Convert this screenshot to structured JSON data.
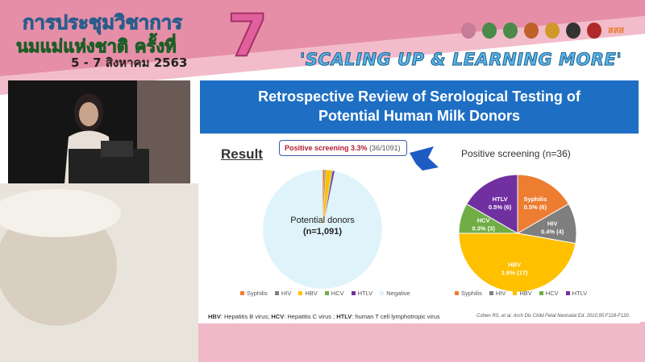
{
  "conference": {
    "title_line1": "การประชุมวิชาการ",
    "title_line2": "นมแม่แห่งชาติ ครั้งที่",
    "number": "7",
    "dates": "5 - 7 สิงหาคม 2563",
    "slogan": "'SCALING UP & LEARNING MORE'",
    "logo_text": "สสส"
  },
  "slide": {
    "title_line1": "Retrospective Review of Serological Testing of",
    "title_line2": "Potential Human Milk Donors",
    "section": "Result",
    "callout_bold": "Positive screening 3.3%",
    "callout_rest": "(36/1091)",
    "left_pie_label1": "Potential donors",
    "left_pie_label2": "(n=1,091)",
    "footnote": [
      {
        "abbr": "HBV",
        "text": ": Hepatitis B virus; "
      },
      {
        "abbr": "HCV",
        "text": ": Hepatitis C virus ; "
      },
      {
        "abbr": "HTLV",
        "text": ": human T cell lymphotropic virus"
      }
    ],
    "citation": "Cohen RS, et al. Arch Dis Child Fetal Neonatal Ed. 2010;95:F118-F120."
  },
  "chart_data": [
    {
      "type": "pie",
      "categories": [
        "Syphilis",
        "HIV",
        "HBV",
        "HCV",
        "HTLV",
        "Negative"
      ],
      "values": [
        6,
        4,
        17,
        3,
        6,
        1055
      ],
      "colors": [
        "#ed7d31",
        "#7f7f7f",
        "#ffc000",
        "#70ad47",
        "#7030a0",
        "#dff3fb"
      ],
      "legend": "bottom"
    },
    {
      "type": "pie",
      "title": "Positive screening (n=36)",
      "categories": [
        "Syphilis",
        "HIV",
        "HBV",
        "HCV",
        "HTLV"
      ],
      "values": [
        6,
        4,
        17,
        3,
        6
      ],
      "labels": [
        "0.5% (6)",
        "0.4% (4)",
        "1.6% (17)",
        "0.3% (3)",
        "0.5% (6)"
      ],
      "colors": [
        "#ed7d31",
        "#7f7f7f",
        "#ffc000",
        "#70ad47",
        "#7030a0"
      ],
      "legend": "bottom"
    }
  ]
}
